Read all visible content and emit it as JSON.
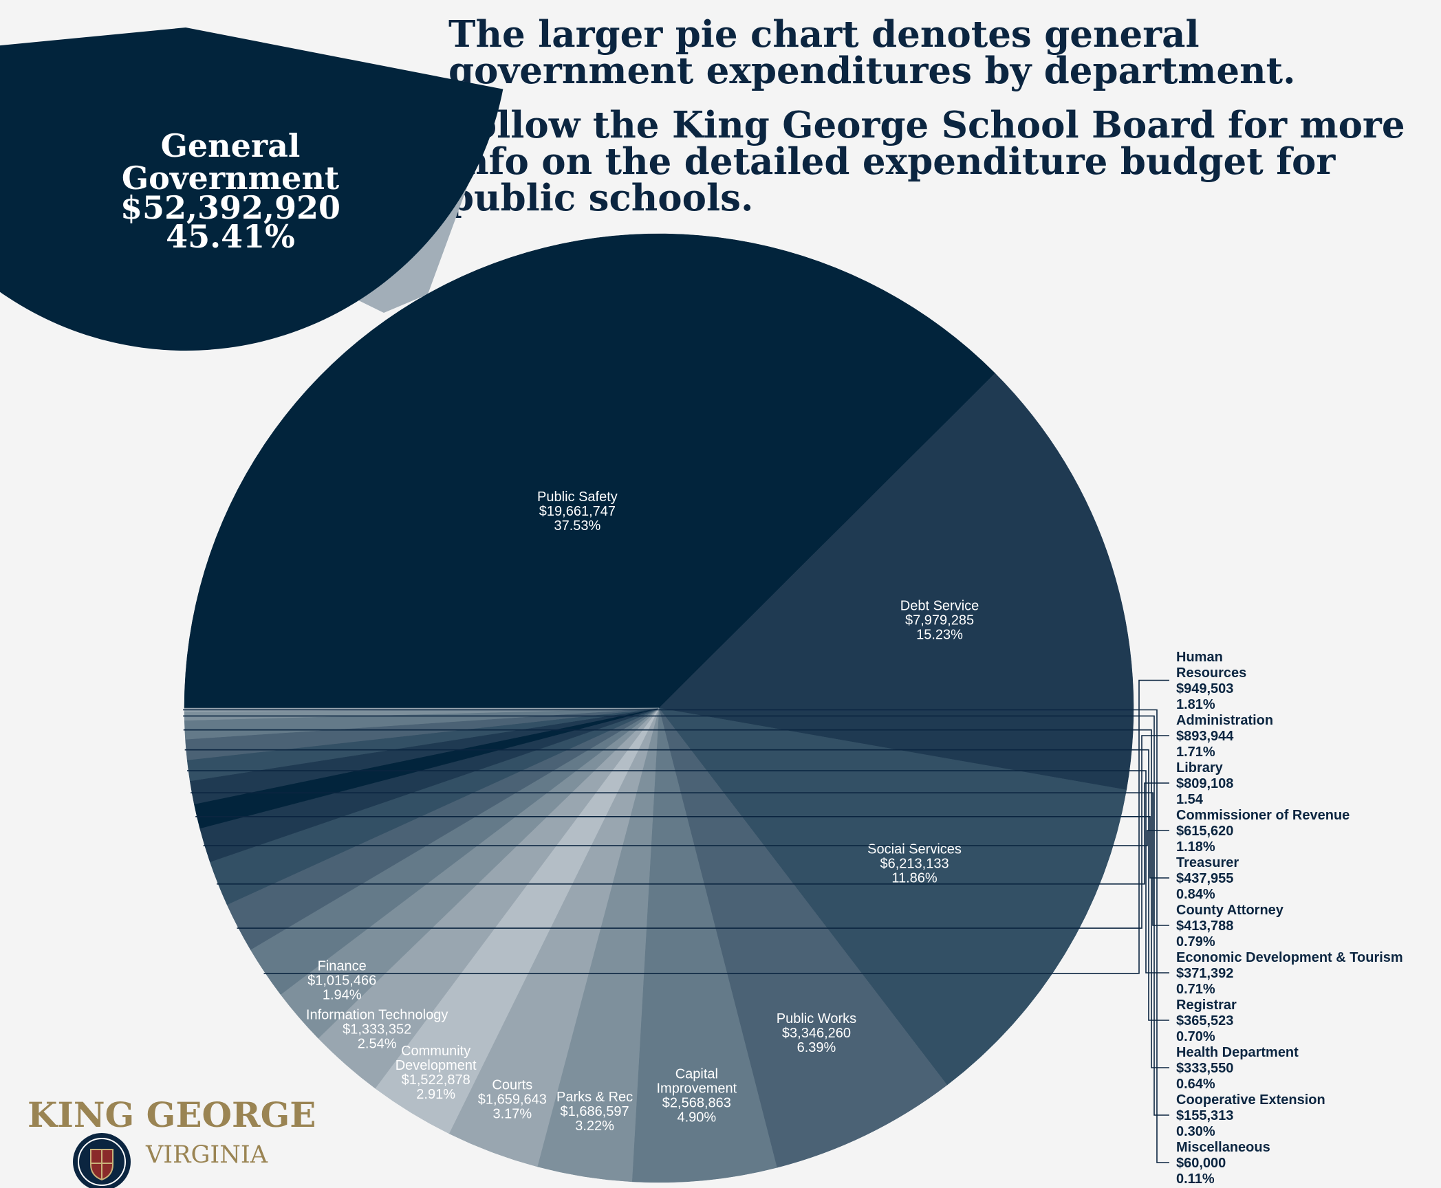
{
  "headline": {
    "line1": "The larger pie chart denotes general government expenditures by department.",
    "line2": "Follow the King George School Board for more info on the detailed expenditure budget for public schools."
  },
  "logo": {
    "line1": "KING GEORGE",
    "line2": "VIRGINIA",
    "seal_text": "King George County, Virginia",
    "colors": {
      "gold": "#9a8453",
      "navy": "#0b2540"
    }
  },
  "colors": {
    "background": "#f4f4f4",
    "overview_pie_other": "#a2aeb8",
    "highlight": "#02243c",
    "callout_text": "#0b2540"
  },
  "chart_data": [
    {
      "type": "pie",
      "role": "overview",
      "slices": [
        {
          "label": "General Government",
          "value": 52392920,
          "percent_label": "45.41%",
          "value_label": "$52,392,920",
          "color": "#02243c"
        },
        {
          "label": "",
          "value": 62984512,
          "color": "#a2aeb8"
        }
      ]
    },
    {
      "type": "pie",
      "role": "breakdown",
      "slices": [
        {
          "label": "Public Safety",
          "value_label": "$19,661,747",
          "percent_label": "37.53%",
          "value": 19661747,
          "color": "#02243c",
          "label_placement": "inside",
          "label_color": "#ffffff"
        },
        {
          "label": "Debt Service",
          "value_label": "$7,979,285",
          "percent_label": "15.23%",
          "value": 7979285,
          "color": "#1f3a52",
          "label_placement": "inside",
          "label_color": "#ffffff"
        },
        {
          "label": "Social Services",
          "value_label": "$6,213,133",
          "percent_label": "11.86%",
          "value": 6213133,
          "color": "#335065",
          "label_placement": "inside",
          "label_color": "#ffffff"
        },
        {
          "label": "Public Works",
          "value_label": "$3,346,260",
          "percent_label": "6.39%",
          "value": 3346260,
          "color": "#4b6275",
          "label_placement": "inside",
          "label_color": "#ffffff"
        },
        {
          "label": "Capital Improvement",
          "label_lines": [
            "Capital",
            "Improvement"
          ],
          "value_label": "$2,568,863",
          "percent_label": "4.90%",
          "value": 2568863,
          "color": "#647a89",
          "label_placement": "inside",
          "label_color": "#ffffff"
        },
        {
          "label": "Parks & Rec",
          "value_label": "$1,686,597",
          "percent_label": "3.22%",
          "value": 1686597,
          "color": "#7e909c",
          "label_placement": "inside",
          "label_color": "#ffffff"
        },
        {
          "label": "Courts",
          "value_label": "$1,659,643",
          "percent_label": "3.17%",
          "value": 1659643,
          "color": "#99a6b0",
          "label_placement": "inside",
          "label_color": "#ffffff"
        },
        {
          "label": "Community Development",
          "label_lines": [
            "Community",
            "Development"
          ],
          "value_label": "$1,522,878",
          "percent_label": "2.91%",
          "value": 1522878,
          "color": "#b4bec6",
          "label_placement": "inside",
          "label_color": "#ffffff"
        },
        {
          "label": "Information Technology",
          "value_label": "$1,333,352",
          "percent_label": "2.54%",
          "value": 1333352,
          "color": "#99a6b0",
          "label_placement": "inside",
          "label_color": "#ffffff"
        },
        {
          "label": "Finance",
          "value_label": "$1,015,466",
          "percent_label": "1.94%",
          "value": 1015466,
          "color": "#7e909c",
          "label_placement": "inside",
          "label_color": "#ffffff"
        },
        {
          "label": "Human Resources",
          "label_lines": [
            "Human",
            "Resources"
          ],
          "value_label": "$949,503",
          "percent_label": "1.81%",
          "value": 949503,
          "color": "#647a89",
          "label_placement": "outside"
        },
        {
          "label": "Administration",
          "value_label": "$893,944",
          "percent_label": "1.71%",
          "value": 893944,
          "color": "#4b6275",
          "label_placement": "outside"
        },
        {
          "label": "Library",
          "value_label": "$809,108",
          "percent_label": "1.54",
          "value": 809108,
          "color": "#335065",
          "label_placement": "outside"
        },
        {
          "label": "Commissioner of Revenue",
          "value_label": "$615,620",
          "percent_label": "1.18%",
          "value": 615620,
          "color": "#1f3a52",
          "label_placement": "outside"
        },
        {
          "label": "Treasurer",
          "value_label": "$437,955",
          "percent_label": "0.84%",
          "value": 437955,
          "color": "#02243c",
          "label_placement": "outside"
        },
        {
          "label": "County Attorney",
          "value_label": "$413,788",
          "percent_label": "0.79%",
          "value": 413788,
          "color": "#1f3a52",
          "label_placement": "outside"
        },
        {
          "label": "Economic Development & Tourism",
          "value_label": "$371,392",
          "percent_label": "0.71%",
          "value": 371392,
          "color": "#335065",
          "label_placement": "outside"
        },
        {
          "label": "Registrar",
          "value_label": "$365,523",
          "percent_label": "0.70%",
          "value": 365523,
          "color": "#4b6275",
          "label_placement": "outside"
        },
        {
          "label": "Health Department",
          "value_label": "$333,550",
          "percent_label": "0.64%",
          "value": 333550,
          "color": "#647a89",
          "label_placement": "outside"
        },
        {
          "label": "Cooperative Extension",
          "value_label": "$155,313",
          "percent_label": "0.30%",
          "value": 155313,
          "color": "#7e909c",
          "label_placement": "outside"
        },
        {
          "label": "Miscellaneous",
          "value_label": "$60,000",
          "percent_label": "0.11%",
          "value": 60000,
          "color": "#99a6b0",
          "label_placement": "outside"
        }
      ]
    }
  ]
}
